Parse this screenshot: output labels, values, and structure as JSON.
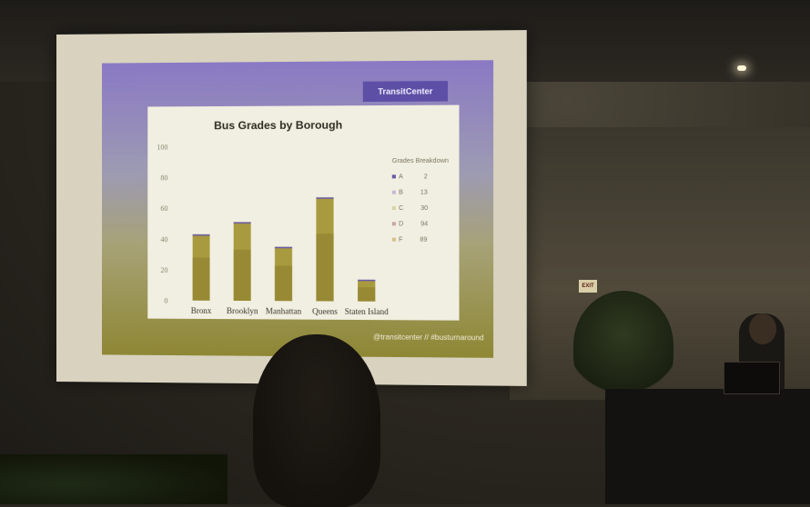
{
  "slide": {
    "brand": "TransitCenter",
    "footer": "@transitcenter // #busturnaround"
  },
  "chart_data": {
    "type": "bar",
    "title": "Bus Grades by Borough",
    "categories": [
      "Bronx",
      "Brooklyn",
      "Manhattan",
      "Queens",
      "Staten Island"
    ],
    "values": [
      43,
      51,
      35,
      67,
      14
    ],
    "ylim": [
      0,
      100
    ],
    "yticks": [
      "0",
      "20",
      "40",
      "60",
      "80",
      "100"
    ],
    "grid": false,
    "legend": {
      "title": "Grades Breakdown",
      "placement": "right",
      "items": [
        {
          "label": "A",
          "value": "2"
        },
        {
          "label": "B",
          "value": "13"
        },
        {
          "label": "C",
          "value": "30"
        },
        {
          "label": "D",
          "value": "94"
        },
        {
          "label": "F",
          "value": "89"
        }
      ]
    },
    "colors": {
      "bar": "#a89a3e",
      "bar_dark": "#8a7c2c",
      "bar_top": "#6a5aa8",
      "axis_text": "#8a8470",
      "category_text": "#3b342a"
    }
  }
}
